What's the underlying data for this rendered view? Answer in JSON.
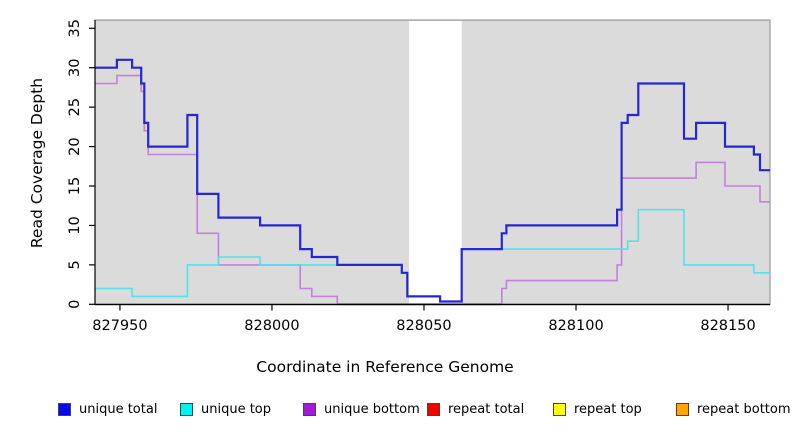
{
  "figure": {
    "xlabel": "Coordinate in Reference Genome",
    "ylabel": "Read Coverage Depth"
  },
  "chart_data": {
    "type": "line",
    "subtype": "step-after",
    "title": "",
    "xlabel": "Coordinate in Reference Genome",
    "ylabel": "Read Coverage Depth",
    "xlim": [
      827941.8,
      828163.8
    ],
    "ylim": [
      0,
      36
    ],
    "x_ticks": [
      827950,
      828000,
      828050,
      828100,
      828150
    ],
    "x_tick_labels": [
      "827950",
      "828000",
      "828050",
      "828100",
      "828150"
    ],
    "y_ticks": [
      0,
      5,
      10,
      15,
      20,
      25,
      30,
      35
    ],
    "y_tick_labels": [
      "0",
      "5",
      "10",
      "15",
      "20",
      "25",
      "30",
      "35"
    ],
    "grid": false,
    "plot_background": "#DBDBDB",
    "gap_region": {
      "start": 828045.1,
      "end": 828062.4,
      "color": "#FFFFFF"
    },
    "baseline_overlap_segment": {
      "start": 828021.5,
      "end": 828075.6,
      "value": 0,
      "color": "#C24B63"
    },
    "x_end": 828163.8,
    "series": [
      {
        "name": "unique total",
        "line_color": "#2626D2",
        "legend_color": "#0808E8",
        "width": 2.2,
        "steps": [
          [
            827941.8,
            30
          ],
          [
            827949,
            31
          ],
          [
            827954,
            30
          ],
          [
            827957,
            28
          ],
          [
            827958,
            23
          ],
          [
            827959.3,
            20
          ],
          [
            827972.2,
            24
          ],
          [
            827975.4,
            14
          ],
          [
            827982.4,
            11
          ],
          [
            827996.1,
            10
          ],
          [
            828009.3,
            7
          ],
          [
            828013.1,
            6
          ],
          [
            828021.5,
            5
          ],
          [
            828042.7,
            4
          ],
          [
            828044.5,
            1
          ],
          [
            828055.3,
            0.35
          ],
          [
            828062.4,
            7
          ],
          [
            828075.6,
            9
          ],
          [
            828077.1,
            10
          ],
          [
            828113.5,
            12
          ],
          [
            828115,
            23
          ],
          [
            828117,
            24
          ],
          [
            828120.5,
            28
          ],
          [
            828135.5,
            21
          ],
          [
            828139.5,
            23
          ],
          [
            828149,
            20
          ],
          [
            828158.5,
            19
          ],
          [
            828160.5,
            17
          ]
        ]
      },
      {
        "name": "unique top",
        "line_color": "#52E2EA",
        "legend_color": "#00F2F2",
        "width": 1.6,
        "steps": [
          [
            827941.8,
            2
          ],
          [
            827954,
            1
          ],
          [
            827972.2,
            5
          ],
          [
            827982.4,
            6
          ],
          [
            827996.1,
            5
          ],
          [
            828042.7,
            4
          ],
          [
            828044.5,
            1
          ],
          [
            828055.3,
            0.35
          ],
          [
            828062.4,
            7
          ],
          [
            828117,
            8
          ],
          [
            828120.5,
            12
          ],
          [
            828135.5,
            5
          ],
          [
            828158.5,
            4
          ]
        ]
      },
      {
        "name": "unique bottom",
        "line_color": "#C480DE",
        "legend_color": "#A31ADB",
        "width": 1.6,
        "steps": [
          [
            827941.8,
            28
          ],
          [
            827949,
            29
          ],
          [
            827957,
            27
          ],
          [
            827958,
            22
          ],
          [
            827959.3,
            19
          ],
          [
            827975.4,
            9
          ],
          [
            827982.4,
            5
          ],
          [
            828009.3,
            2
          ],
          [
            828013.1,
            1
          ],
          [
            828021.5,
            0
          ],
          [
            828075.6,
            2
          ],
          [
            828077.1,
            3
          ],
          [
            828113.5,
            5
          ],
          [
            828115,
            16
          ],
          [
            828139.5,
            18
          ],
          [
            828149,
            15
          ],
          [
            828160.5,
            13
          ]
        ]
      },
      {
        "name": "repeat total",
        "line_color": "#E00000",
        "legend_color": "#F50000",
        "width": 1.6,
        "steps": [
          [
            827941.8,
            0
          ]
        ]
      },
      {
        "name": "repeat top",
        "line_color": "#F5F500",
        "legend_color": "#FFFF00",
        "width": 1.6,
        "steps": [
          [
            827941.8,
            0
          ]
        ]
      },
      {
        "name": "repeat bottom",
        "line_color": "#FFA00A",
        "legend_color": "#FFA500",
        "width": 2,
        "steps": [
          [
            827941.8,
            0
          ]
        ]
      }
    ],
    "legend_position": "bottom"
  },
  "legend": {
    "items": [
      {
        "label": "unique total",
        "color": "#0808E8"
      },
      {
        "label": "unique top",
        "color": "#00F2F2"
      },
      {
        "label": "unique bottom",
        "color": "#A31ADB"
      },
      {
        "label": "repeat total",
        "color": "#F50000"
      },
      {
        "label": "repeat top",
        "color": "#FFFF00"
      },
      {
        "label": "repeat bottom",
        "color": "#FFA500"
      }
    ]
  }
}
